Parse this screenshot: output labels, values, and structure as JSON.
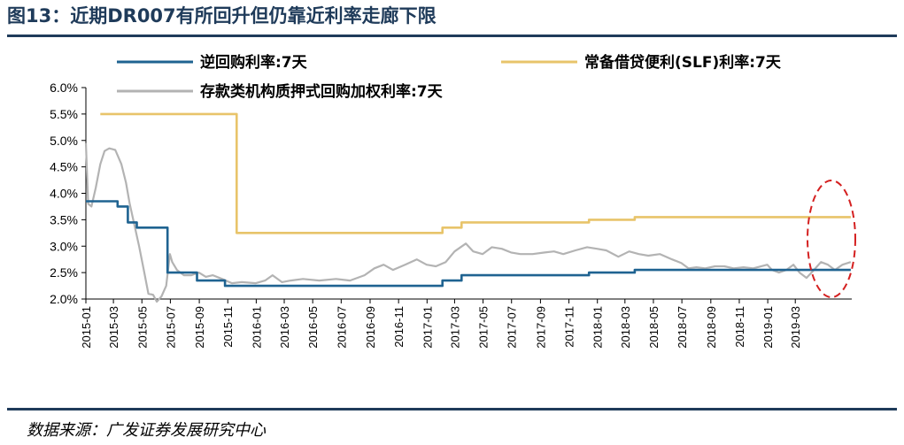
{
  "figure": {
    "title": "图13：近期DR007有所回升但仍靠近利率走廊下限",
    "source": "数据来源：广发证券发展研究中心"
  },
  "colors": {
    "reverse_repo": "#1f6391",
    "slf": "#e8c46a",
    "dr007": "#b3b3b3",
    "annotation": "#d42020",
    "rule": "#1f3b5a"
  },
  "chart_data": {
    "type": "line",
    "title": "",
    "xlabel": "",
    "ylabel": "",
    "ylim": [
      0.02,
      0.06
    ],
    "xlim": [
      "2015-01-01",
      "2019-06-30"
    ],
    "y_ticks": [
      "2.0%",
      "2.5%",
      "3.0%",
      "3.5%",
      "4.0%",
      "4.5%",
      "5.0%",
      "5.5%",
      "6.0%"
    ],
    "x_ticks": [
      "2015-01",
      "2015-03",
      "2015-05",
      "2015-07",
      "2015-09",
      "2015-11",
      "2016-01",
      "2016-03",
      "2016-05",
      "2016-07",
      "2016-09",
      "2016-11",
      "2017-01",
      "2017-03",
      "2017-05",
      "2017-07",
      "2017-09",
      "2017-11",
      "2018-01",
      "2018-03",
      "2018-05",
      "2018-07",
      "2018-09",
      "2018-11",
      "2019-01",
      "2019-03"
    ],
    "legend_position": "top",
    "grid": false,
    "series": [
      {
        "name": "逆回购利率:7天",
        "color_key": "reverse_repo",
        "step": true,
        "points": [
          [
            "2015-01-01",
            0.0385
          ],
          [
            "2015-02-05",
            0.0385
          ],
          [
            "2015-03-10",
            0.0375
          ],
          [
            "2015-04-01",
            0.0345
          ],
          [
            "2015-04-20",
            0.0335
          ],
          [
            "2015-06-25",
            0.025
          ],
          [
            "2015-08-27",
            0.0235
          ],
          [
            "2015-10-26",
            0.0225
          ],
          [
            "2017-02-03",
            0.0235
          ],
          [
            "2017-03-16",
            0.0245
          ],
          [
            "2017-12-14",
            0.025
          ],
          [
            "2018-03-22",
            0.0255
          ],
          [
            "2019-06-28",
            0.0255
          ]
        ]
      },
      {
        "name": "常备借贷便利(SLF)利率:7天",
        "color_key": "slf",
        "step": true,
        "points": [
          [
            "2015-02-01",
            0.055
          ],
          [
            "2015-11-20",
            0.0325
          ],
          [
            "2017-02-03",
            0.0335
          ],
          [
            "2017-03-16",
            0.0345
          ],
          [
            "2017-12-14",
            0.035
          ],
          [
            "2018-03-22",
            0.0355
          ],
          [
            "2019-06-28",
            0.0355
          ]
        ]
      },
      {
        "name": "存款类机构质押式回购加权利率:7天",
        "color_key": "dr007",
        "step": false,
        "points": [
          [
            "2015-01-01",
            0.0495
          ],
          [
            "2015-01-06",
            0.038
          ],
          [
            "2015-01-13",
            0.0375
          ],
          [
            "2015-01-22",
            0.041
          ],
          [
            "2015-02-01",
            0.0455
          ],
          [
            "2015-02-10",
            0.048
          ],
          [
            "2015-02-20",
            0.0485
          ],
          [
            "2015-03-05",
            0.0482
          ],
          [
            "2015-03-18",
            0.0455
          ],
          [
            "2015-03-28",
            0.042
          ],
          [
            "2015-04-05",
            0.038
          ],
          [
            "2015-04-15",
            0.034
          ],
          [
            "2015-04-25",
            0.03
          ],
          [
            "2015-05-05",
            0.0255
          ],
          [
            "2015-05-15",
            0.021
          ],
          [
            "2015-05-25",
            0.0208
          ],
          [
            "2015-06-02",
            0.0195
          ],
          [
            "2015-06-12",
            0.0205
          ],
          [
            "2015-06-22",
            0.0225
          ],
          [
            "2015-06-30",
            0.0285
          ],
          [
            "2015-07-05",
            0.027
          ],
          [
            "2015-07-15",
            0.0255
          ],
          [
            "2015-07-30",
            0.0245
          ],
          [
            "2015-08-15",
            0.0245
          ],
          [
            "2015-08-31",
            0.025
          ],
          [
            "2015-09-15",
            0.0242
          ],
          [
            "2015-09-30",
            0.0245
          ],
          [
            "2015-10-20",
            0.0238
          ],
          [
            "2015-11-10",
            0.023
          ],
          [
            "2015-12-01",
            0.0232
          ],
          [
            "2015-12-31",
            0.023
          ],
          [
            "2016-01-20",
            0.0235
          ],
          [
            "2016-02-05",
            0.0245
          ],
          [
            "2016-02-25",
            0.0232
          ],
          [
            "2016-03-15",
            0.0235
          ],
          [
            "2016-04-10",
            0.0238
          ],
          [
            "2016-05-15",
            0.0235
          ],
          [
            "2016-06-20",
            0.0238
          ],
          [
            "2016-07-20",
            0.0235
          ],
          [
            "2016-08-20",
            0.0245
          ],
          [
            "2016-09-10",
            0.0258
          ],
          [
            "2016-09-30",
            0.0265
          ],
          [
            "2016-10-20",
            0.0255
          ],
          [
            "2016-11-15",
            0.0265
          ],
          [
            "2016-12-10",
            0.0275
          ],
          [
            "2016-12-31",
            0.0265
          ],
          [
            "2017-01-20",
            0.0262
          ],
          [
            "2017-02-10",
            0.027
          ],
          [
            "2017-03-01",
            0.029
          ],
          [
            "2017-03-25",
            0.0305
          ],
          [
            "2017-04-10",
            0.029
          ],
          [
            "2017-04-30",
            0.0285
          ],
          [
            "2017-05-20",
            0.0298
          ],
          [
            "2017-06-10",
            0.0295
          ],
          [
            "2017-06-30",
            0.0288
          ],
          [
            "2017-07-20",
            0.0285
          ],
          [
            "2017-08-15",
            0.0285
          ],
          [
            "2017-09-10",
            0.0288
          ],
          [
            "2017-09-30",
            0.029
          ],
          [
            "2017-10-20",
            0.0285
          ],
          [
            "2017-11-15",
            0.0292
          ],
          [
            "2017-12-10",
            0.0298
          ],
          [
            "2017-12-31",
            0.0295
          ],
          [
            "2018-01-20",
            0.0292
          ],
          [
            "2018-02-15",
            0.028
          ],
          [
            "2018-03-10",
            0.029
          ],
          [
            "2018-03-31",
            0.0285
          ],
          [
            "2018-04-20",
            0.0282
          ],
          [
            "2018-05-15",
            0.0285
          ],
          [
            "2018-06-10",
            0.0275
          ],
          [
            "2018-06-30",
            0.0268
          ],
          [
            "2018-07-15",
            0.0258
          ],
          [
            "2018-08-01",
            0.026
          ],
          [
            "2018-08-20",
            0.0258
          ],
          [
            "2018-09-10",
            0.0262
          ],
          [
            "2018-09-30",
            0.0262
          ],
          [
            "2018-10-20",
            0.0258
          ],
          [
            "2018-11-10",
            0.026
          ],
          [
            "2018-12-01",
            0.0258
          ],
          [
            "2018-12-31",
            0.0265
          ],
          [
            "2019-01-10",
            0.0255
          ],
          [
            "2019-01-25",
            0.025
          ],
          [
            "2019-02-10",
            0.0255
          ],
          [
            "2019-02-25",
            0.0265
          ],
          [
            "2019-03-10",
            0.025
          ],
          [
            "2019-03-25",
            0.024
          ],
          [
            "2019-04-10",
            0.0255
          ],
          [
            "2019-04-25",
            0.027
          ],
          [
            "2019-05-10",
            0.0265
          ],
          [
            "2019-05-25",
            0.0255
          ],
          [
            "2019-06-10",
            0.0265
          ],
          [
            "2019-06-28",
            0.027
          ]
        ]
      }
    ]
  }
}
